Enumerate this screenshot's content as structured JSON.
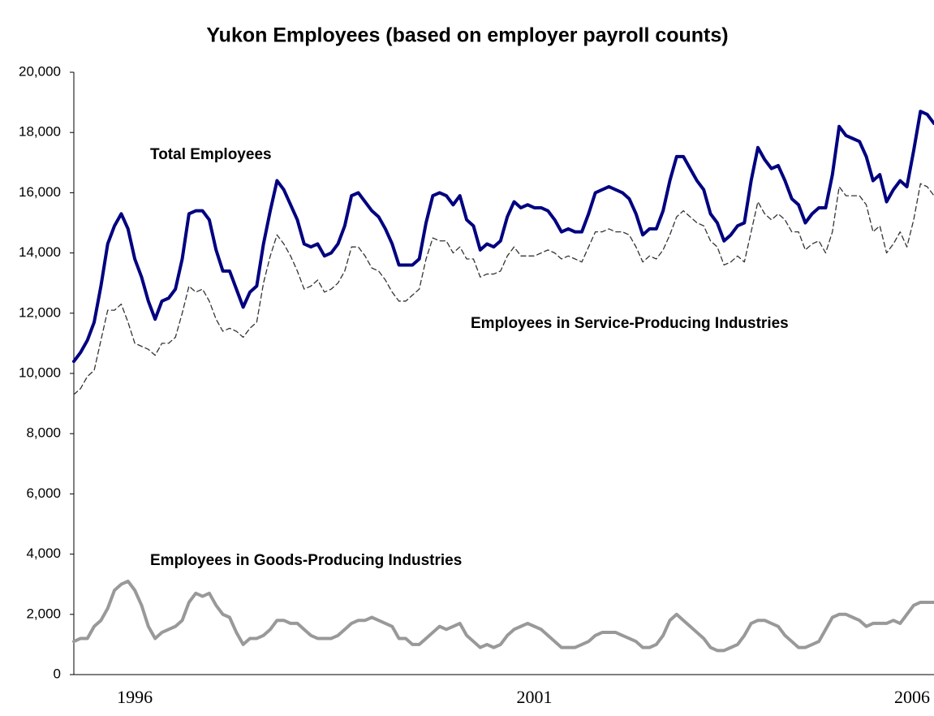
{
  "chart_data": {
    "type": "line",
    "title": "Yukon Employees (based on employer payroll counts)",
    "annotations": [
      "Total Employees",
      "Employees in Service-Producing Industries",
      "Employees in Goods-Producing Industries"
    ],
    "categories": [
      null,
      null,
      null,
      null,
      null,
      null,
      null,
      null,
      null,
      "1996",
      null,
      null,
      null,
      null,
      null,
      null,
      null,
      null,
      null,
      null,
      null,
      null,
      null,
      null,
      null,
      null,
      null,
      null,
      null,
      null,
      null,
      null,
      null,
      null,
      null,
      null,
      null,
      null,
      null,
      null,
      null,
      null,
      null,
      null,
      null,
      null,
      null,
      null,
      null,
      null,
      null,
      null,
      null,
      null,
      null,
      null,
      null,
      null,
      null,
      null,
      null,
      null,
      null,
      null,
      null,
      null,
      null,
      null,
      "2001",
      null,
      null,
      null,
      null,
      null,
      null,
      null,
      null,
      null,
      null,
      null,
      null,
      null,
      null,
      null,
      null,
      null,
      null,
      null,
      null,
      null,
      null,
      null,
      null,
      null,
      null,
      null,
      null,
      null,
      null,
      null,
      null,
      null,
      null,
      null,
      null,
      null,
      null,
      null,
      null,
      null,
      null,
      null,
      null,
      null,
      null,
      null,
      null,
      null,
      null,
      null,
      null,
      null,
      null,
      null,
      "2006",
      null,
      null,
      null
    ],
    "series": [
      {
        "name": "Total Employees",
        "color": "#000080",
        "width": 4,
        "dashed": false,
        "values": [
          10400,
          10700,
          11100,
          11700,
          12900,
          14300,
          14900,
          15300,
          14800,
          13800,
          13200,
          12400,
          11800,
          12400,
          12500,
          12800,
          13800,
          15300,
          15400,
          15400,
          15100,
          14100,
          13400,
          13400,
          12800,
          12200,
          12700,
          12900,
          14300,
          15400,
          16400,
          16100,
          15600,
          15100,
          14300,
          14200,
          14300,
          13900,
          14000,
          14300,
          14900,
          15900,
          16000,
          15700,
          15400,
          15200,
          14800,
          14300,
          13600,
          13600,
          13600,
          13800,
          15000,
          15900,
          16000,
          15900,
          15600,
          15900,
          15100,
          14900,
          14100,
          14300,
          14200,
          14400,
          15200,
          15700,
          15500,
          15600,
          15500,
          15500,
          15400,
          15100,
          14700,
          14800,
          14700,
          14700,
          15300,
          16000,
          16100,
          16200,
          16100,
          16000,
          15800,
          15300,
          14600,
          14800,
          14800,
          15400,
          16400,
          17200,
          17200,
          16800,
          16400,
          16100,
          15300,
          15000,
          14400,
          14600,
          14900,
          15000,
          16400,
          17500,
          17100,
          16800,
          16900,
          16400,
          15800,
          15600,
          15000,
          15300,
          15500,
          15500,
          16600,
          18200,
          17900,
          17800,
          17700,
          17200,
          16400,
          16600,
          15700,
          16100,
          16400,
          16200,
          17400,
          18700,
          18600,
          18300
        ]
      },
      {
        "name": "Employees in Service-Producing Industries",
        "color": "#333333",
        "width": 1.3,
        "dashed": true,
        "values": [
          9300,
          9500,
          9900,
          10100,
          11100,
          12100,
          12100,
          12300,
          11700,
          11000,
          10900,
          10800,
          10600,
          11000,
          11000,
          11200,
          12000,
          12900,
          12700,
          12800,
          12400,
          11800,
          11400,
          11500,
          11400,
          11200,
          11500,
          11700,
          13000,
          13900,
          14600,
          14300,
          13900,
          13400,
          12800,
          12900,
          13100,
          12700,
          12800,
          13000,
          13400,
          14200,
          14200,
          13900,
          13500,
          13400,
          13100,
          12700,
          12400,
          12400,
          12600,
          12800,
          13800,
          14500,
          14400,
          14400,
          14000,
          14200,
          13800,
          13800,
          13200,
          13300,
          13300,
          13400,
          13900,
          14200,
          13900,
          13900,
          13900,
          14000,
          14100,
          14000,
          13800,
          13900,
          13800,
          13700,
          14200,
          14700,
          14700,
          14800,
          14700,
          14700,
          14600,
          14200,
          13700,
          13900,
          13800,
          14100,
          14600,
          15200,
          15400,
          15200,
          15000,
          14900,
          14400,
          14200,
          13600,
          13700,
          13900,
          13700,
          14700,
          15700,
          15300,
          15100,
          15300,
          15100,
          14700,
          14700,
          14100,
          14300,
          14400,
          14000,
          14700,
          16200,
          15900,
          15900,
          15900,
          15600,
          14700,
          14900,
          14000,
          14300,
          14700,
          14200,
          15100,
          16300,
          16200,
          15900
        ]
      },
      {
        "name": "Employees in Goods-Producing Industries",
        "color": "#999999",
        "width": 4,
        "dashed": false,
        "values": [
          1100,
          1200,
          1200,
          1600,
          1800,
          2200,
          2800,
          3000,
          3100,
          2800,
          2300,
          1600,
          1200,
          1400,
          1500,
          1600,
          1800,
          2400,
          2700,
          2600,
          2700,
          2300,
          2000,
          1900,
          1400,
          1000,
          1200,
          1200,
          1300,
          1500,
          1800,
          1800,
          1700,
          1700,
          1500,
          1300,
          1200,
          1200,
          1200,
          1300,
          1500,
          1700,
          1800,
          1800,
          1900,
          1800,
          1700,
          1600,
          1200,
          1200,
          1000,
          1000,
          1200,
          1400,
          1600,
          1500,
          1600,
          1700,
          1300,
          1100,
          900,
          1000,
          900,
          1000,
          1300,
          1500,
          1600,
          1700,
          1600,
          1500,
          1300,
          1100,
          900,
          900,
          900,
          1000,
          1100,
          1300,
          1400,
          1400,
          1400,
          1300,
          1200,
          1100,
          900,
          900,
          1000,
          1300,
          1800,
          2000,
          1800,
          1600,
          1400,
          1200,
          900,
          800,
          800,
          900,
          1000,
          1300,
          1700,
          1800,
          1800,
          1700,
          1600,
          1300,
          1100,
          900,
          900,
          1000,
          1100,
          1500,
          1900,
          2000,
          2000,
          1900,
          1800,
          1600,
          1700,
          1700,
          1700,
          1800,
          1700,
          2000,
          2300,
          2400,
          2400,
          2400
        ]
      }
    ],
    "ylim": [
      0,
      20000
    ],
    "yticks": [
      0,
      {
        "value": 2000,
        "label": "2,000"
      },
      {
        "value": 4000,
        "label": "4,000"
      },
      {
        "value": 6000,
        "label": "6,000"
      },
      {
        "value": 8000,
        "label": "8,000"
      },
      {
        "value": 10000,
        "label": "10,000"
      },
      {
        "value": 12000,
        "label": "12,000"
      },
      {
        "value": 14000,
        "label": "14,000"
      },
      {
        "value": 16000,
        "label": "16,000"
      },
      {
        "value": 18000,
        "label": "18,000"
      },
      {
        "value": 20000,
        "label": "20,000"
      }
    ],
    "grid": false
  }
}
